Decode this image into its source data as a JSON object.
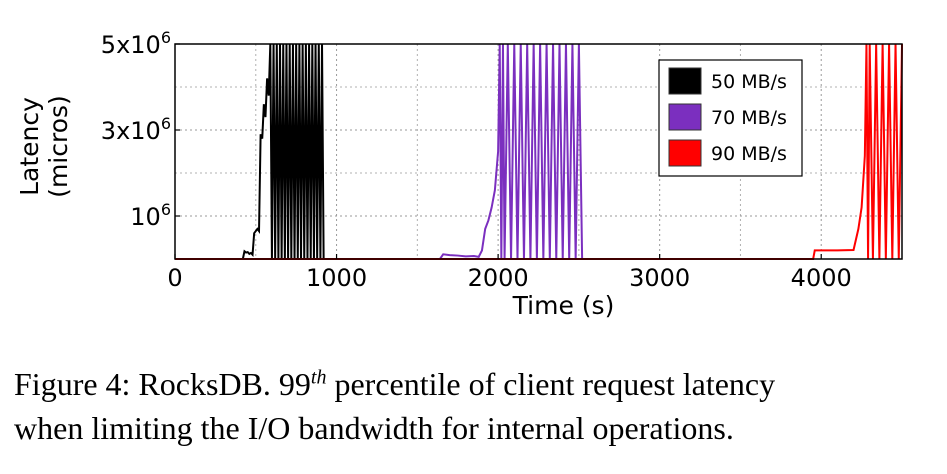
{
  "chart_data": {
    "type": "line",
    "xlabel": "Time (s)",
    "ylabel_lines": [
      "Latency",
      "(micros)"
    ],
    "xlim": [
      0,
      4500
    ],
    "ylim": [
      0,
      5000000
    ],
    "x_ticks": [
      0,
      1000,
      2000,
      3000,
      4000
    ],
    "x_tick_labels": [
      "0",
      "1000",
      "2000",
      "3000",
      "4000"
    ],
    "y_ticks": [
      1000000,
      3000000,
      5000000
    ],
    "y_tick_labels": [
      {
        "base": "10",
        "exp": "6"
      },
      {
        "base": "3x10",
        "exp": "6"
      },
      {
        "base": "5x10",
        "exp": "6"
      }
    ],
    "grid": true,
    "legend_position": "top-right",
    "series": [
      {
        "name": "50 MB/s",
        "color": "#000000",
        "x": [
          0,
          420,
          430,
          440,
          450,
          460,
          470,
          480,
          490,
          500,
          510,
          520,
          530,
          540,
          550,
          560,
          570,
          580,
          590,
          600,
          610,
          620,
          630,
          640,
          650,
          660,
          670,
          680,
          690,
          700,
          710,
          720,
          730,
          740,
          750,
          760,
          770,
          780,
          790,
          800,
          810,
          820,
          830,
          840,
          850,
          860,
          870,
          880,
          890,
          900,
          910,
          920,
          930
        ],
        "y": [
          0,
          0,
          180000,
          150000,
          160000,
          120000,
          140000,
          100000,
          600000,
          650000,
          700000,
          650000,
          2900000,
          2800000,
          3600000,
          3300000,
          4200000,
          3800000,
          5000000,
          0,
          5000000,
          0,
          5000000,
          0,
          5000000,
          0,
          5000000,
          0,
          5000000,
          0,
          5000000,
          0,
          5000000,
          0,
          5000000,
          0,
          5000000,
          0,
          5000000,
          0,
          5000000,
          0,
          5000000,
          0,
          5000000,
          0,
          5000000,
          0,
          5000000,
          0,
          5000000,
          0,
          0
        ]
      },
      {
        "name": "70 MB/s",
        "color": "#7b2fbf",
        "x": [
          0,
          1640,
          1660,
          1700,
          1750,
          1800,
          1850,
          1880,
          1900,
          1920,
          1940,
          1960,
          1980,
          2000,
          2010,
          2020,
          2030,
          2040,
          2060,
          2080,
          2100,
          2120,
          2140,
          2160,
          2180,
          2200,
          2220,
          2240,
          2260,
          2280,
          2300,
          2320,
          2340,
          2360,
          2380,
          2400,
          2420,
          2440,
          2460,
          2480,
          2500,
          2520
        ],
        "y": [
          0,
          0,
          110000,
          90000,
          80000,
          60000,
          70000,
          50000,
          200000,
          700000,
          900000,
          1200000,
          1600000,
          2500000,
          5000000,
          0,
          5000000,
          0,
          5000000,
          0,
          5000000,
          0,
          5000000,
          0,
          5000000,
          0,
          5000000,
          0,
          5000000,
          0,
          5000000,
          0,
          5000000,
          0,
          5000000,
          0,
          5000000,
          0,
          5000000,
          0,
          5000000,
          0
        ]
      },
      {
        "name": "90 MB/s",
        "color": "#ff0000",
        "x": [
          0,
          3950,
          3960,
          4000,
          4100,
          4200,
          4230,
          4250,
          4270,
          4280,
          4290,
          4300,
          4320,
          4340,
          4360,
          4380,
          4400,
          4420,
          4440,
          4460,
          4480,
          4500
        ],
        "y": [
          0,
          0,
          200000,
          200000,
          200000,
          210000,
          700000,
          1200000,
          2400000,
          5000000,
          0,
          5000000,
          0,
          5000000,
          0,
          5000000,
          0,
          5000000,
          0,
          5000000,
          0,
          5000000
        ]
      }
    ]
  },
  "caption": {
    "prefix": "Figure 4: RocksDB. 99",
    "sup": "th",
    "line1_rest": " percentile of client request latency",
    "line2": "when limiting the I/O bandwidth for internal operations."
  }
}
